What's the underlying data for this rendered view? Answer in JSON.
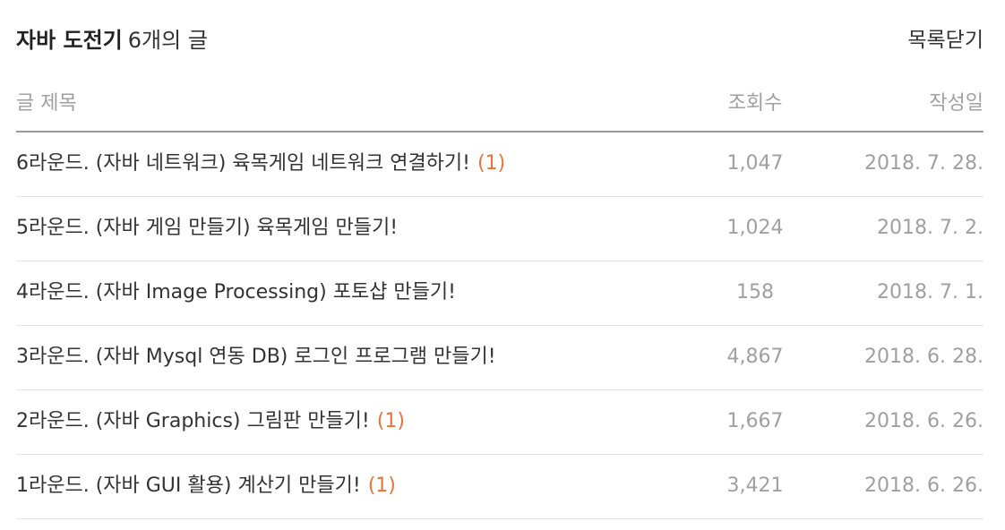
{
  "header": {
    "category": "자바 도전기",
    "count_text": "6개의 글",
    "close_label": "목록닫기"
  },
  "table": {
    "columns": {
      "title": "글 제목",
      "views": "조회수",
      "date": "작성일"
    },
    "rows": [
      {
        "title": "6라운드. (자바 네트워크) 육목게임 네트워크 연결하기!",
        "comments": "(1)",
        "views": "1,047",
        "date": "2018. 7. 28."
      },
      {
        "title": "5라운드. (자바 게임 만들기) 육목게임 만들기!",
        "comments": "",
        "views": "1,024",
        "date": "2018. 7. 2."
      },
      {
        "title": "4라운드. (자바 Image Processing) 포토샵 만들기!",
        "comments": "",
        "views": "158",
        "date": "2018. 7. 1."
      },
      {
        "title": "3라운드. (자바 Mysql 연동 DB) 로그인 프로그램 만들기!",
        "comments": "",
        "views": "4,867",
        "date": "2018. 6. 28."
      },
      {
        "title": "2라운드. (자바 Graphics) 그림판 만들기!",
        "comments": "(1)",
        "views": "1,667",
        "date": "2018. 6. 26."
      },
      {
        "title": "1라운드. (자바 GUI 활용) 계산기 만들기!",
        "comments": "(1)",
        "views": "3,421",
        "date": "2018. 6. 26."
      }
    ]
  },
  "colors": {
    "comment_accent": "#e8733a",
    "muted_text": "#a0a0a0",
    "header_rule": "#9a9a9a",
    "row_rule": "#e3e3e3"
  }
}
